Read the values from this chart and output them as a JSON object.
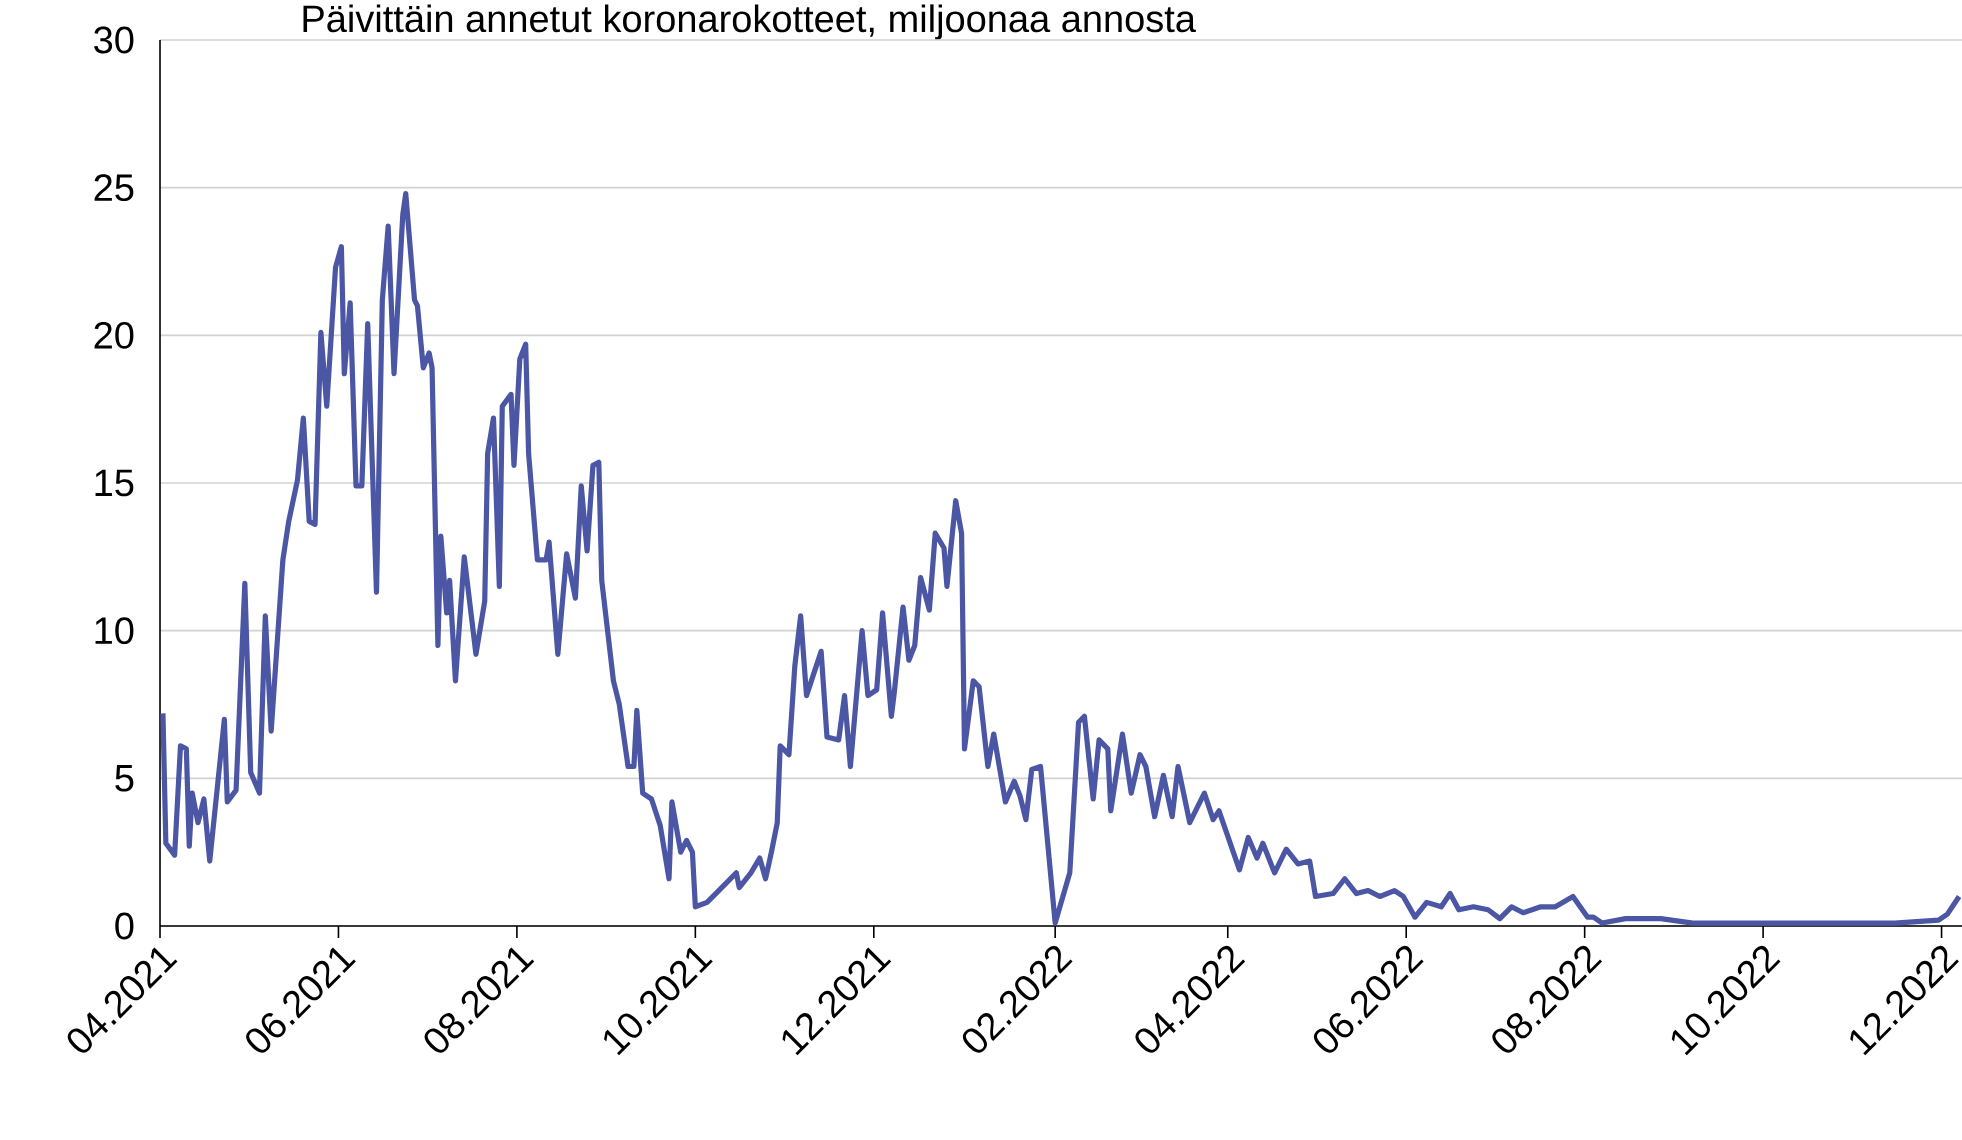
{
  "chart_data": {
    "type": "line",
    "title": "Päivittäin annetut koronarokotteet, miljoonaa annosta",
    "x": [
      "2021-04-02",
      "2021-04-03",
      "2021-04-06",
      "2021-04-08",
      "2021-04-10",
      "2021-04-11",
      "2021-04-12",
      "2021-04-14",
      "2021-04-16",
      "2021-04-18",
      "2021-04-23",
      "2021-04-24",
      "2021-04-27",
      "2021-04-30",
      "2021-05-02",
      "2021-05-05",
      "2021-05-07",
      "2021-05-09",
      "2021-05-13",
      "2021-05-15",
      "2021-05-18",
      "2021-05-20",
      "2021-05-22",
      "2021-05-24",
      "2021-05-26",
      "2021-05-28",
      "2021-05-31",
      "2021-06-02",
      "2021-06-03",
      "2021-06-05",
      "2021-06-07",
      "2021-06-09",
      "2021-06-11",
      "2021-06-14",
      "2021-06-16",
      "2021-06-18",
      "2021-06-20",
      "2021-06-23",
      "2021-06-24",
      "2021-06-27",
      "2021-06-28",
      "2021-06-30",
      "2021-07-02",
      "2021-07-03",
      "2021-07-05",
      "2021-07-06",
      "2021-07-08",
      "2021-07-09",
      "2021-07-11",
      "2021-07-14",
      "2021-07-18",
      "2021-07-21",
      "2021-07-22",
      "2021-07-24",
      "2021-07-26",
      "2021-07-27",
      "2021-07-30",
      "2021-07-31",
      "2021-08-02",
      "2021-08-04",
      "2021-08-05",
      "2021-08-08",
      "2021-08-11",
      "2021-08-12",
      "2021-08-15",
      "2021-08-18",
      "2021-08-21",
      "2021-08-23",
      "2021-08-25",
      "2021-08-27",
      "2021-08-29",
      "2021-08-30",
      "2021-09-03",
      "2021-09-05",
      "2021-09-08",
      "2021-09-10",
      "2021-09-11",
      "2021-09-13",
      "2021-09-16",
      "2021-09-19",
      "2021-09-22",
      "2021-09-23",
      "2021-09-26",
      "2021-09-28",
      "2021-09-30",
      "2021-10-01",
      "2021-10-05",
      "2021-10-09",
      "2021-10-15",
      "2021-10-16",
      "2021-10-20",
      "2021-10-23",
      "2021-10-25",
      "2021-10-27",
      "2021-10-29",
      "2021-10-30",
      "2021-11-02",
      "2021-11-04",
      "2021-11-06",
      "2021-11-08",
      "2021-11-10",
      "2021-11-13",
      "2021-11-15",
      "2021-11-19",
      "2021-11-21",
      "2021-11-23",
      "2021-11-25",
      "2021-11-27",
      "2021-11-29",
      "2021-12-02",
      "2021-12-04",
      "2021-12-07",
      "2021-12-08",
      "2021-12-11",
      "2021-12-13",
      "2021-12-15",
      "2021-12-17",
      "2021-12-20",
      "2021-12-22",
      "2021-12-25",
      "2021-12-26",
      "2021-12-29",
      "2021-12-31",
      "2022-01-01",
      "2022-01-04",
      "2022-01-06",
      "2022-01-09",
      "2022-01-11",
      "2022-01-15",
      "2022-01-18",
      "2022-01-20",
      "2022-01-22",
      "2022-01-24",
      "2022-01-27",
      "2022-02-01",
      "2022-02-06",
      "2022-02-09",
      "2022-02-11",
      "2022-02-14",
      "2022-02-16",
      "2022-02-19",
      "2022-02-20",
      "2022-02-24",
      "2022-02-27",
      "2022-03-02",
      "2022-03-04",
      "2022-03-07",
      "2022-03-10",
      "2022-03-13",
      "2022-03-15",
      "2022-03-19",
      "2022-03-24",
      "2022-03-27",
      "2022-03-29",
      "2022-04-05",
      "2022-04-08",
      "2022-04-11",
      "2022-04-13",
      "2022-04-17",
      "2022-04-21",
      "2022-04-25",
      "2022-04-29",
      "2022-05-01",
      "2022-05-07",
      "2022-05-11",
      "2022-05-15",
      "2022-05-19",
      "2022-05-23",
      "2022-05-28",
      "2022-05-31",
      "2022-06-04",
      "2022-06-08",
      "2022-06-13",
      "2022-06-16",
      "2022-06-19",
      "2022-06-24",
      "2022-06-29",
      "2022-07-03",
      "2022-07-07",
      "2022-07-11",
      "2022-07-17",
      "2022-07-22",
      "2022-07-28",
      "2022-08-02",
      "2022-08-04",
      "2022-08-07",
      "2022-08-15",
      "2022-08-27",
      "2022-09-07",
      "2022-09-30",
      "2022-10-23",
      "2022-11-15",
      "2022-11-30",
      "2022-12-03",
      "2022-12-07"
    ],
    "series": [
      {
        "color": "#4b56a4",
        "values": [
          7.2,
          2.8,
          2.4,
          6.1,
          6.0,
          2.7,
          4.5,
          3.5,
          4.3,
          2.2,
          7.0,
          4.2,
          4.6,
          11.6,
          5.2,
          4.5,
          10.5,
          6.6,
          12.4,
          13.7,
          15.1,
          17.2,
          13.7,
          13.6,
          20.1,
          17.6,
          22.3,
          23.0,
          18.7,
          21.1,
          14.9,
          14.9,
          20.4,
          11.3,
          21.2,
          23.7,
          18.7,
          24.1,
          24.8,
          21.2,
          21.0,
          18.9,
          19.4,
          18.9,
          9.5,
          13.2,
          10.6,
          11.7,
          8.3,
          12.5,
          9.2,
          11.0,
          16.0,
          17.2,
          11.5,
          17.6,
          18.0,
          15.6,
          19.2,
          19.7,
          16.0,
          12.4,
          12.4,
          13.0,
          9.2,
          12.6,
          11.1,
          14.9,
          12.7,
          15.6,
          15.7,
          11.7,
          8.3,
          7.5,
          5.4,
          5.4,
          7.3,
          4.5,
          4.3,
          3.4,
          1.6,
          4.2,
          2.5,
          2.9,
          2.5,
          0.65,
          0.8,
          1.2,
          1.8,
          1.3,
          1.8,
          2.3,
          1.6,
          2.5,
          3.5,
          6.1,
          5.8,
          8.8,
          10.5,
          7.8,
          8.4,
          9.3,
          6.4,
          6.3,
          7.8,
          5.4,
          7.7,
          10.0,
          7.8,
          8.0,
          10.6,
          7.1,
          7.9,
          10.8,
          9.0,
          9.5,
          11.8,
          10.7,
          13.3,
          12.8,
          11.5,
          14.4,
          13.3,
          6.0,
          8.3,
          8.1,
          5.4,
          6.5,
          4.2,
          4.9,
          4.4,
          3.6,
          5.3,
          5.4,
          0.1,
          1.8,
          6.9,
          7.1,
          4.3,
          6.3,
          6.0,
          3.9,
          6.5,
          4.5,
          5.8,
          5.4,
          3.7,
          5.1,
          3.7,
          5.4,
          3.5,
          4.5,
          3.6,
          3.9,
          1.9,
          3.0,
          2.3,
          2.8,
          1.8,
          2.6,
          2.1,
          2.2,
          1.0,
          1.1,
          1.6,
          1.1,
          1.2,
          1.0,
          1.2,
          1.0,
          0.3,
          0.8,
          0.65,
          1.1,
          0.55,
          0.65,
          0.55,
          0.25,
          0.65,
          0.45,
          0.65,
          0.65,
          1.0,
          0.3,
          0.3,
          0.1,
          0.25,
          0.25,
          0.1,
          0.1,
          0.1,
          0.1,
          0.2,
          0.4,
          1.0
        ]
      }
    ],
    "xlim": [
      "2021-04-01",
      "2022-12-08"
    ],
    "xticks": [
      {
        "value": "2021-04-01",
        "label": "04.2021"
      },
      {
        "value": "2021-06-01",
        "label": "06.2021"
      },
      {
        "value": "2021-08-01",
        "label": "08.2021"
      },
      {
        "value": "2021-10-01",
        "label": "10.2021"
      },
      {
        "value": "2021-12-01",
        "label": "12.2021"
      },
      {
        "value": "2022-02-01",
        "label": "02.2022"
      },
      {
        "value": "2022-04-01",
        "label": "04.2022"
      },
      {
        "value": "2022-06-01",
        "label": "06.2022"
      },
      {
        "value": "2022-08-01",
        "label": "08.2022"
      },
      {
        "value": "2022-10-01",
        "label": "10.2022"
      },
      {
        "value": "2022-12-01",
        "label": "12.2022"
      }
    ],
    "ylim": [
      0,
      30
    ],
    "yticks": [
      0,
      5,
      10,
      15,
      20,
      25,
      30
    ],
    "grid": "y",
    "line_style": "solid",
    "marker": "none"
  }
}
